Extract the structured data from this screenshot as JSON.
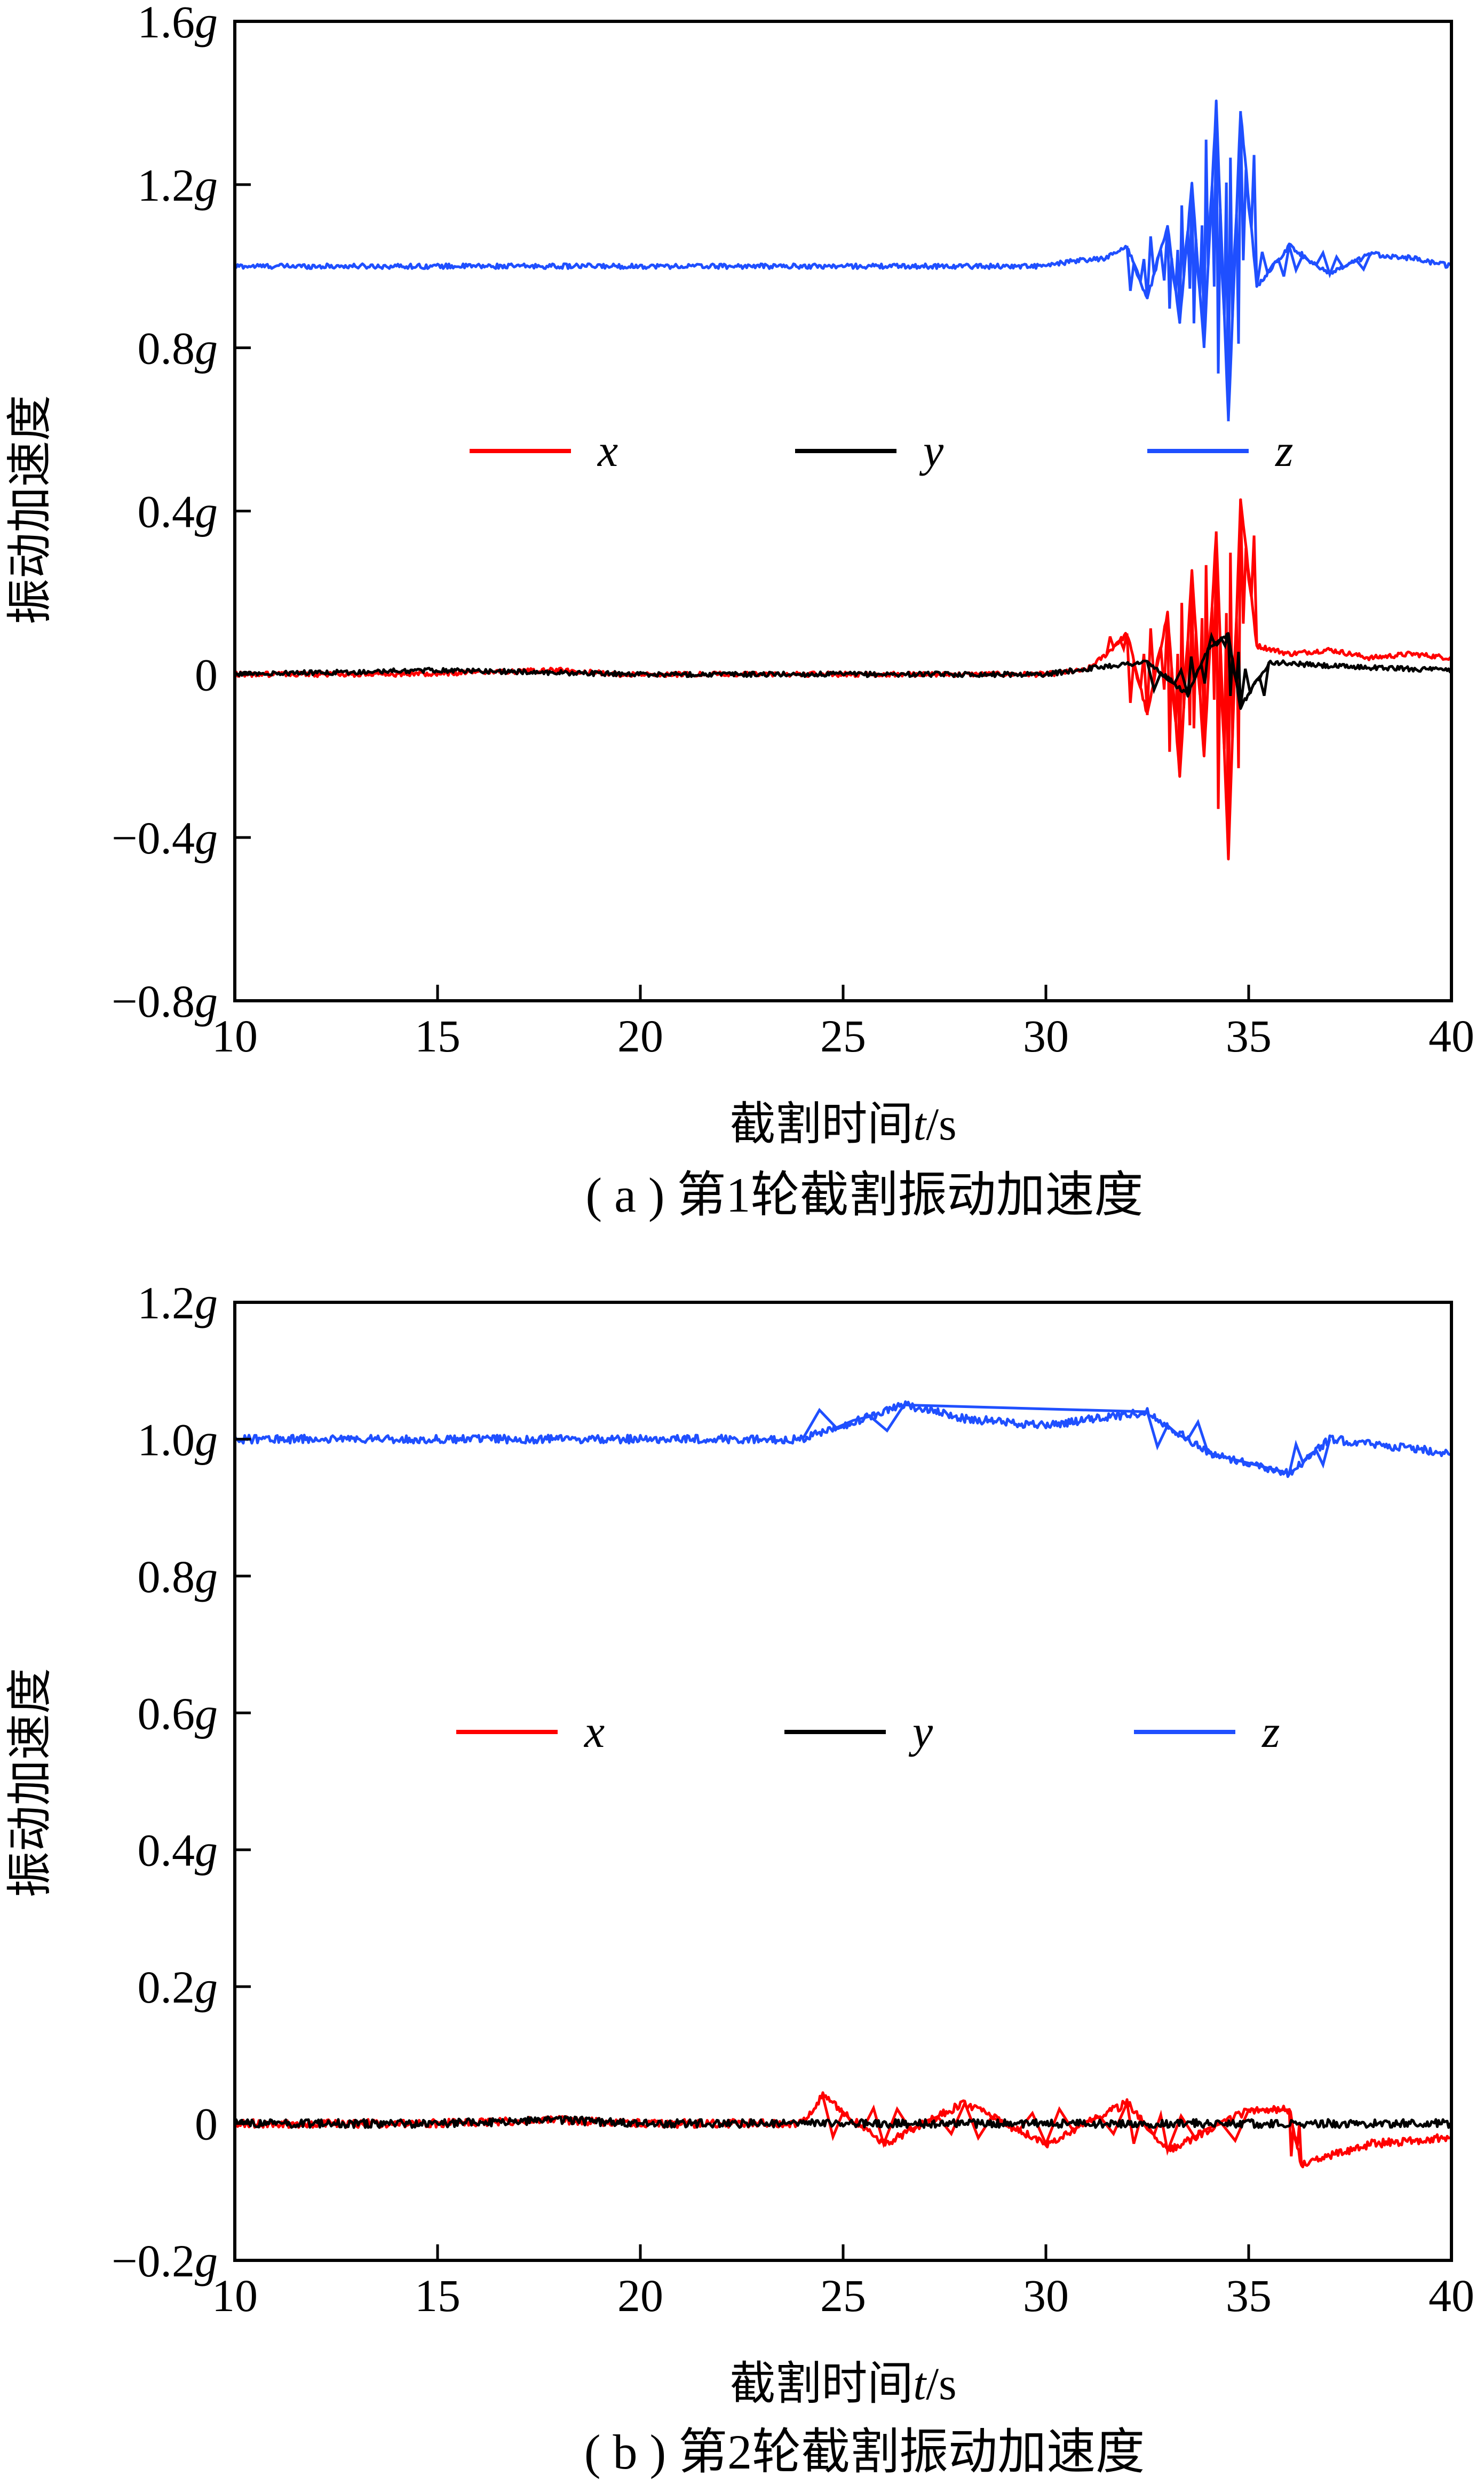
{
  "colors": {
    "x": "#ff0000",
    "y": "#000000",
    "z": "#1f4fff"
  },
  "chart_data": [
    {
      "type": "line",
      "caption": "( a ) 第1轮截割振动加速度",
      "xlabel": "截割时间t/s",
      "ylabel": "振动加速度",
      "xlim": [
        10,
        40
      ],
      "ylim": [
        -0.8,
        1.6
      ],
      "x_ticks": [
        10,
        15,
        20,
        25,
        30,
        35,
        40
      ],
      "x_tick_labels": [
        "10",
        "15",
        "20",
        "25",
        "30",
        "35",
        "40"
      ],
      "y_ticks": [
        -0.8,
        -0.4,
        0,
        0.4,
        0.8,
        1.2,
        1.6
      ],
      "y_tick_labels": [
        "−0.8g",
        "−0.4g",
        "0",
        "0.4g",
        "0.8g",
        "1.2g",
        "1.6g"
      ],
      "legend_position": "center",
      "series": [
        {
          "name": "x",
          "color": "#ff0000",
          "x": [
            10,
            14,
            18,
            19.5,
            22,
            26,
            30,
            31,
            31.5,
            32,
            32.5,
            33,
            33.3,
            33.6,
            33.9,
            34.2,
            34.5,
            34.8,
            35.2,
            36,
            37,
            38,
            39,
            40
          ],
          "y": [
            0,
            0,
            0.01,
            0,
            0,
            0,
            0,
            0.01,
            0.05,
            0.1,
            -0.1,
            0.15,
            -0.25,
            0.25,
            -0.2,
            0.35,
            -0.45,
            0.43,
            0.07,
            0.05,
            0.06,
            0.04,
            0.05,
            0.04
          ]
        },
        {
          "name": "y",
          "color": "#000000",
          "x": [
            10,
            15,
            20,
            25,
            30,
            31.5,
            32.5,
            33.5,
            34,
            34.5,
            34.8,
            35.5,
            37,
            40
          ],
          "y": [
            0,
            0.01,
            0,
            0,
            0,
            0.02,
            0.03,
            -0.05,
            0.06,
            0.1,
            -0.08,
            0.03,
            0.02,
            0.01
          ]
        },
        {
          "name": "z",
          "color": "#1f4fff",
          "x": [
            10,
            15,
            20,
            25,
            30,
            30.5,
            31.5,
            32,
            32.5,
            33,
            33.3,
            33.6,
            33.9,
            34.2,
            34.5,
            34.8,
            35.2,
            36,
            37,
            38,
            39,
            40
          ],
          "y": [
            1.0,
            1.0,
            1.0,
            1.0,
            1.0,
            1.01,
            1.02,
            1.05,
            0.92,
            1.1,
            0.86,
            1.2,
            0.8,
            1.4,
            0.62,
            1.38,
            0.95,
            1.05,
            0.98,
            1.03,
            1.02,
            1.0
          ]
        }
      ]
    },
    {
      "type": "line",
      "caption": "( b ) 第2轮截割振动加速度",
      "xlabel": "截割时间t/s",
      "ylabel": "振动加速度",
      "xlim": [
        10,
        40
      ],
      "ylim": [
        -0.2,
        1.2
      ],
      "x_ticks": [
        10,
        15,
        20,
        25,
        30,
        35,
        40
      ],
      "x_tick_labels": [
        "10",
        "15",
        "20",
        "25",
        "30",
        "35",
        "40"
      ],
      "y_ticks": [
        -0.2,
        0,
        0.2,
        0.4,
        0.6,
        0.8,
        1.0,
        1.2
      ],
      "y_tick_labels": [
        "−0.2g",
        "0",
        "0.2g",
        "0.4g",
        "0.6g",
        "0.8g",
        "1.0g",
        "1.2g"
      ],
      "legend_position": "center",
      "series": [
        {
          "name": "x",
          "color": "#ff0000",
          "x": [
            10,
            15,
            18,
            20,
            24,
            24.5,
            26,
            28,
            30,
            32,
            33,
            35,
            36,
            36.3,
            38,
            40
          ],
          "y": [
            0,
            0,
            0.005,
            0,
            0,
            0.04,
            -0.03,
            0.03,
            -0.03,
            0.03,
            -0.04,
            0.02,
            0.02,
            -0.06,
            -0.03,
            -0.02
          ]
        },
        {
          "name": "y",
          "color": "#000000",
          "x": [
            10,
            15,
            18,
            20,
            25,
            30,
            35,
            40
          ],
          "y": [
            0,
            0,
            0.005,
            0,
            0,
            0,
            0,
            0
          ]
        },
        {
          "name": "z",
          "color": "#1f4fff",
          "x": [
            10,
            15,
            20,
            24,
            26.5,
            28,
            30,
            32.5,
            34,
            36,
            37,
            40
          ],
          "y": [
            1.0,
            1.0,
            1.0,
            1.0,
            1.05,
            1.03,
            1.02,
            1.04,
            0.98,
            0.95,
            1.0,
            0.98
          ]
        }
      ]
    }
  ]
}
